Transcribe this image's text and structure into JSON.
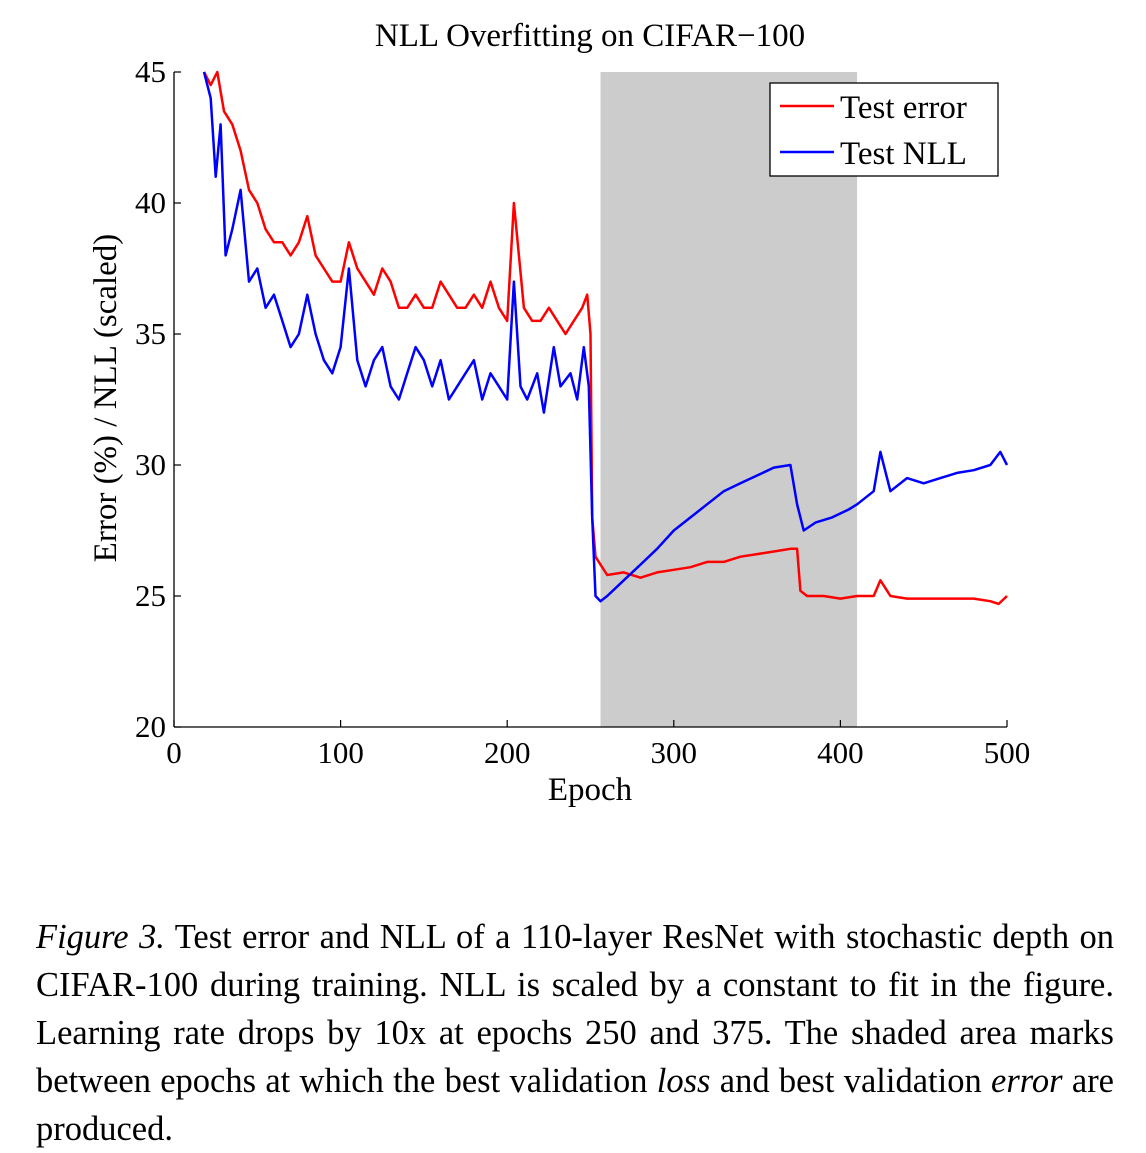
{
  "chart_data": {
    "type": "line",
    "title": "NLL Overfitting on CIFAR−100",
    "xlabel": "Epoch",
    "ylabel": "Error (%) / NLL (scaled)",
    "xlim": [
      0,
      500
    ],
    "ylim": [
      20,
      45
    ],
    "xticks": [
      "0",
      "100",
      "200",
      "300",
      "400",
      "500"
    ],
    "yticks": [
      "20",
      "25",
      "30",
      "35",
      "40",
      "45"
    ],
    "grid": false,
    "legend_position": "top-right",
    "shaded_region": {
      "x_start": 256,
      "x_end": 410,
      "color": "#cccccc"
    },
    "series": [
      {
        "name": "Test error",
        "color": "#ff0000",
        "x": [
          18,
          22,
          26,
          30,
          35,
          40,
          45,
          50,
          55,
          60,
          65,
          70,
          75,
          80,
          85,
          90,
          95,
          100,
          105,
          110,
          115,
          120,
          125,
          130,
          135,
          140,
          145,
          150,
          155,
          160,
          165,
          170,
          175,
          180,
          185,
          190,
          195,
          200,
          204,
          210,
          215,
          220,
          225,
          230,
          235,
          240,
          245,
          248,
          250,
          251,
          253,
          256,
          260,
          270,
          280,
          290,
          300,
          310,
          320,
          330,
          340,
          350,
          360,
          370,
          374,
          376,
          380,
          390,
          400,
          410,
          420,
          424,
          430,
          440,
          450,
          460,
          470,
          480,
          490,
          495,
          500
        ],
        "values": [
          45.0,
          44.5,
          45.0,
          43.5,
          43.0,
          42.0,
          40.5,
          40.0,
          39.0,
          38.5,
          38.5,
          38.0,
          38.5,
          39.5,
          38.0,
          37.5,
          37.0,
          37.0,
          38.5,
          37.5,
          37.0,
          36.5,
          37.5,
          37.0,
          36.0,
          36.0,
          36.5,
          36.0,
          36.0,
          37.0,
          36.5,
          36.0,
          36.0,
          36.5,
          36.0,
          37.0,
          36.0,
          35.5,
          40.0,
          36.0,
          35.5,
          35.5,
          36.0,
          35.5,
          35.0,
          35.5,
          36.0,
          36.5,
          35.0,
          28.0,
          26.5,
          26.2,
          25.8,
          25.9,
          25.7,
          25.9,
          26.0,
          26.1,
          26.3,
          26.3,
          26.5,
          26.6,
          26.7,
          26.8,
          26.8,
          25.2,
          25.0,
          25.0,
          24.9,
          25.0,
          25.0,
          25.6,
          25.0,
          24.9,
          24.9,
          24.9,
          24.9,
          24.9,
          24.8,
          24.7,
          25.0
        ]
      },
      {
        "name": "Test NLL",
        "color": "#0000ff",
        "x": [
          18,
          22,
          25,
          28,
          31,
          35,
          40,
          45,
          50,
          55,
          60,
          65,
          70,
          75,
          80,
          85,
          90,
          95,
          100,
          105,
          110,
          115,
          120,
          125,
          130,
          135,
          140,
          145,
          150,
          155,
          160,
          165,
          170,
          175,
          180,
          185,
          190,
          195,
          200,
          204,
          208,
          212,
          218,
          222,
          228,
          232,
          238,
          242,
          246,
          249,
          251,
          253,
          256,
          260,
          270,
          280,
          290,
          300,
          310,
          320,
          330,
          340,
          350,
          360,
          370,
          374,
          378,
          385,
          395,
          405,
          410,
          420,
          424,
          430,
          440,
          450,
          460,
          470,
          480,
          490,
          496,
          500
        ],
        "values": [
          45.0,
          44.0,
          41.0,
          43.0,
          38.0,
          39.0,
          40.5,
          37.0,
          37.5,
          36.0,
          36.5,
          35.5,
          34.5,
          35.0,
          36.5,
          35.0,
          34.0,
          33.5,
          34.5,
          37.5,
          34.0,
          33.0,
          34.0,
          34.5,
          33.0,
          32.5,
          33.5,
          34.5,
          34.0,
          33.0,
          34.0,
          32.5,
          33.0,
          33.5,
          34.0,
          32.5,
          33.5,
          33.0,
          32.5,
          37.0,
          33.0,
          32.5,
          33.5,
          32.0,
          34.5,
          33.0,
          33.5,
          32.5,
          34.5,
          33.0,
          28.0,
          25.0,
          24.8,
          25.0,
          25.6,
          26.2,
          26.8,
          27.5,
          28.0,
          28.5,
          29.0,
          29.3,
          29.6,
          29.9,
          30.0,
          28.5,
          27.5,
          27.8,
          28.0,
          28.3,
          28.5,
          29.0,
          30.5,
          29.0,
          29.5,
          29.3,
          29.5,
          29.7,
          29.8,
          30.0,
          30.5,
          30.0
        ]
      }
    ]
  },
  "caption": {
    "label": "Figure 3.",
    "part1": " Test error and NLL of a 110-layer ResNet with stochastic depth on CIFAR-100 during training. NLL is scaled by a constant to fit in the figure. Learning rate drops by 10x at epochs 250 and 375. The shaded area marks between epochs at which the best validation ",
    "em1": "loss",
    "part2": " and best validation ",
    "em2": "error",
    "part3": " are produced."
  }
}
